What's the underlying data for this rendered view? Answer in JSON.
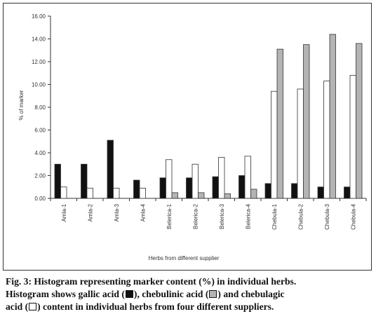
{
  "chart_data": {
    "type": "bar",
    "xlabel": "Herbs from different supplier",
    "ylabel": "% of marker",
    "ylim": [
      0,
      16
    ],
    "yticks": [
      "0.00",
      "2.00",
      "4.00",
      "6.00",
      "8.00",
      "10.00",
      "12.00",
      "14.00",
      "16.00"
    ],
    "categories": [
      "Amla-1",
      "Amla-2",
      "Amla-3",
      "Amla-4",
      "Belerica-1",
      "Belerica-2",
      "Belerica-3",
      "Belerica-4",
      "Chebula-1",
      "Chebula-2",
      "Chebula-3",
      "Chebula-4"
    ],
    "series": [
      {
        "key": "gallic",
        "color": "#111111",
        "values": [
          3.0,
          3.0,
          5.1,
          1.6,
          1.8,
          1.8,
          1.9,
          2.0,
          1.3,
          1.3,
          1.0,
          1.0
        ]
      },
      {
        "key": "chebulagic",
        "color": "#ffffff",
        "values": [
          1.0,
          0.9,
          0.9,
          0.9,
          3.4,
          3.0,
          3.6,
          3.7,
          9.4,
          9.6,
          10.3,
          10.8
        ]
      },
      {
        "key": "chebulinic",
        "color": "#b4b4b4",
        "values": [
          0.0,
          0.0,
          0.0,
          0.0,
          0.5,
          0.5,
          0.4,
          0.8,
          13.1,
          13.5,
          14.4,
          13.6
        ]
      }
    ],
    "grid": false,
    "legend": "none"
  },
  "caption": {
    "line1": "Fig. 3: Histogram representing marker content (%) in individual herbs.",
    "seg1": "Histogram shows gallic acid (",
    "seg2": "), chebulinic acid (",
    "seg3": ") and chebulagic",
    "seg4": "acid (",
    "seg5": ") content in individual herbs from four different suppliers."
  },
  "colors": {
    "gallic": "#111111",
    "chebulinic": "#b4b4b4",
    "chebulagic": "#ffffff"
  }
}
